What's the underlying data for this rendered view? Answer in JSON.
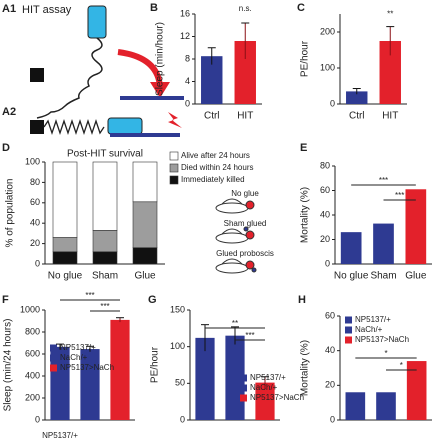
{
  "diagram": {
    "label_a1": "A1",
    "title": "HIT assay",
    "label_a2": "A2"
  },
  "chart_data": [
    {
      "type": "bar",
      "panel_label": "B",
      "ylabel": "Sleep (min/hour)",
      "categories": [
        "Ctrl",
        "HIT"
      ],
      "values": [
        8.5,
        11.2
      ],
      "errors": [
        1.5,
        3.2
      ],
      "colors": [
        "#2e3a92",
        "#e3212b"
      ],
      "ylim": [
        0,
        16
      ],
      "yticks": [
        0,
        4,
        8,
        12,
        16
      ],
      "annotations": [
        "n.s."
      ]
    },
    {
      "type": "bar",
      "panel_label": "C",
      "ylabel": "PE/hour",
      "categories": [
        "Ctrl",
        "HIT"
      ],
      "values": [
        35,
        175
      ],
      "errors": [
        8,
        40
      ],
      "colors": [
        "#2e3a92",
        "#e3212b"
      ],
      "ylim": [
        0,
        250
      ],
      "yticks": [
        0,
        100,
        200
      ],
      "annotations": [
        "**"
      ]
    },
    {
      "type": "stacked_bar",
      "panel_label": "D",
      "title": "Post-HIT survival",
      "ylabel": "% of population",
      "categories": [
        "No glue",
        "Sham",
        "Glue"
      ],
      "series": [
        {
          "name": "Immediately killed",
          "color": "#111111",
          "values": [
            12,
            12,
            16
          ]
        },
        {
          "name": "Died within 24 hours",
          "color": "#9d9d9d",
          "values": [
            14,
            21,
            45
          ]
        },
        {
          "name": "Alive after 24 hours",
          "color": "#ffffff",
          "values": [
            74,
            67,
            39
          ]
        }
      ],
      "ylim": [
        0,
        100
      ],
      "yticks": [
        0,
        20,
        40,
        60,
        80,
        100
      ],
      "illustration_labels": [
        "No glue",
        "Sham glued",
        "Glued proboscis"
      ]
    },
    {
      "type": "bar",
      "panel_label": "E",
      "ylabel": "Mortality (%)",
      "categories": [
        "No glue",
        "Sham",
        "Glue"
      ],
      "values": [
        26,
        33,
        61
      ],
      "colors": [
        "#2e3a92",
        "#2e3a92",
        "#e3212b"
      ],
      "ylim": [
        0,
        80
      ],
      "yticks": [
        0,
        20,
        40,
        60,
        80
      ],
      "annotations": [
        "***",
        "***"
      ]
    },
    {
      "type": "bar",
      "panel_label": "F",
      "ylabel": "Sleep (min/24 hours)",
      "xlabel": "NP5137/+",
      "series": [
        {
          "name": "NP5137/+",
          "color": "#2e3a92",
          "values": [
            665
          ],
          "errors": [
            25
          ]
        },
        {
          "name": "NaCh/+",
          "color": "#2e3a92",
          "values": [
            645
          ],
          "errors": [
            25
          ]
        },
        {
          "name": "NP5137>NaCh",
          "color": "#e3212b",
          "values": [
            910
          ],
          "errors": [
            20
          ]
        }
      ],
      "ylim": [
        0,
        1000
      ],
      "yticks": [
        0,
        200,
        400,
        600,
        800,
        1000
      ],
      "annotations": [
        "***",
        "***"
      ]
    },
    {
      "type": "bar",
      "panel_label": "G",
      "ylabel": "PE/hour",
      "series": [
        {
          "name": "NP5137/+",
          "color": "#2e3a92",
          "values": [
            112
          ],
          "errors": [
            18
          ]
        },
        {
          "name": "NaCh/+",
          "color": "#2e3a92",
          "values": [
            115
          ],
          "errors": [
            12
          ]
        },
        {
          "name": "NP5137>NaCh",
          "color": "#e3212b",
          "values": [
            51
          ],
          "errors": [
            8
          ]
        }
      ],
      "ylim": [
        0,
        150
      ],
      "yticks": [
        0,
        50,
        100,
        150
      ],
      "annotations": [
        "**",
        "***"
      ]
    },
    {
      "type": "bar",
      "panel_label": "H",
      "ylabel": "Mortality (%)",
      "series": [
        {
          "name": "NP5137/+",
          "color": "#2e3a92",
          "values": [
            16
          ]
        },
        {
          "name": "NaCh/+",
          "color": "#2e3a92",
          "values": [
            16
          ]
        },
        {
          "name": "NP5137>NaCh",
          "color": "#e3212b",
          "values": [
            34
          ]
        }
      ],
      "ylim": [
        0,
        60
      ],
      "yticks": [
        0,
        20,
        40,
        60
      ],
      "annotations": [
        "*",
        "*"
      ]
    }
  ]
}
